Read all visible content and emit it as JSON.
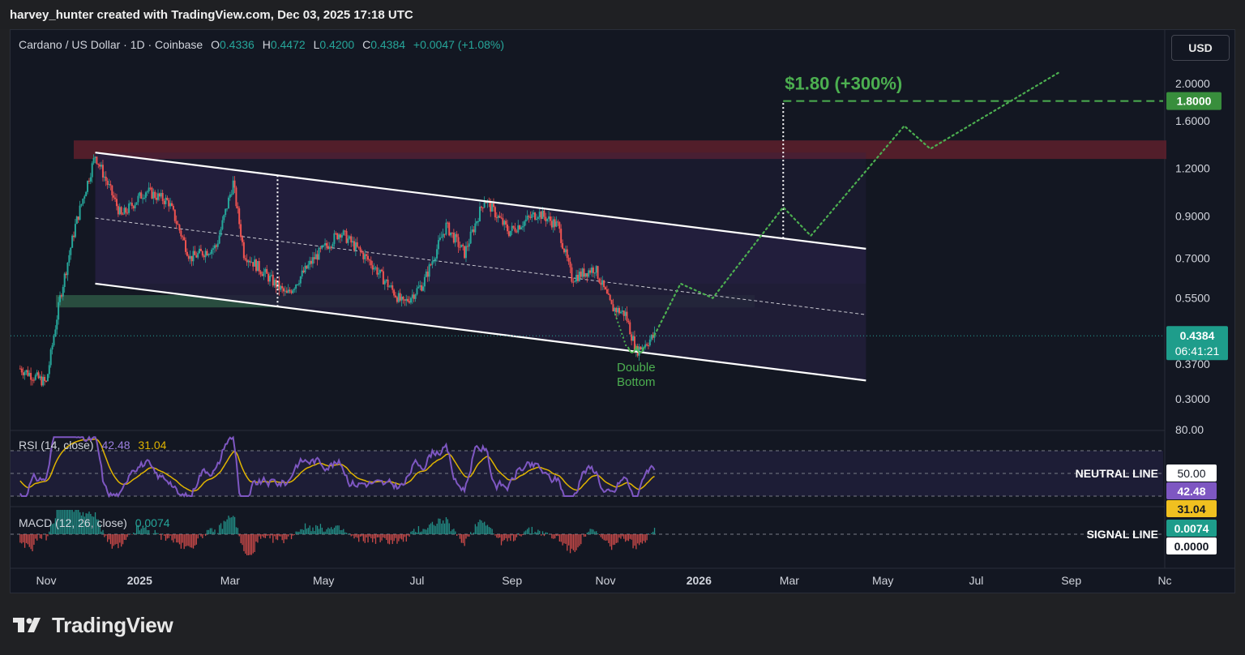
{
  "header": {
    "author_line": "harvey_hunter created with TradingView.com, Dec 03, 2025 17:18 UTC"
  },
  "legend": {
    "symbol": "Cardano / US Dollar · 1D · Coinbase",
    "open_label": "O",
    "open": "0.4336",
    "high_label": "H",
    "high": "0.4472",
    "low_label": "L",
    "low": "0.4200",
    "close_label": "C",
    "close": "0.4384",
    "change": "+0.0047 (+1.08%)"
  },
  "currency": "USD",
  "annotations": {
    "target": "$1.80 (+300%)",
    "double_bottom_line1": "Double",
    "double_bottom_line2": "Bottom",
    "neutral_line": "NEUTRAL LINE",
    "signal_line": "SIGNAL LINE"
  },
  "price_badges": {
    "target": "1.8000",
    "last_price": "0.4384",
    "countdown": "06:41:21"
  },
  "rsi": {
    "label": "RSI (14, close)",
    "value": "42.48",
    "ma_value": "31.04",
    "axis_top": "80.00",
    "badge_50": "50.00",
    "badge_rsi": "42.48",
    "badge_ma": "31.04"
  },
  "macd": {
    "label": "MACD (12, 26, close)",
    "value": "0.0074",
    "badge_value": "0.0074",
    "badge_zero": "0.0000"
  },
  "footer": {
    "brand": "TradingView"
  },
  "colors": {
    "up": "#26a69a",
    "down": "#ef5350",
    "rsi": "#7e57c2",
    "rsi_ma": "#e0b400",
    "projection": "#4caf50",
    "resistance": "#5a1f2b",
    "support": "#2e5744",
    "channel": "#221e3a"
  },
  "chart_data": {
    "type": "candlestick",
    "title": "Cardano / US Dollar · 1D · Coinbase",
    "x_ticks": [
      "Nov",
      "2025",
      "Mar",
      "May",
      "Jul",
      "Sep",
      "Nov",
      "2026",
      "Mar",
      "May",
      "Jul",
      "Sep",
      "Nc"
    ],
    "y_ticks": [
      "2.0000",
      "1.6000",
      "1.2000",
      "0.9000",
      "0.7000",
      "0.5500",
      "0.3700",
      "0.3000"
    ],
    "y_scale": "log",
    "price_series": [
      {
        "date": "2024-10-15",
        "close": 0.36
      },
      {
        "date": "2024-11-01",
        "close": 0.33
      },
      {
        "date": "2024-11-10",
        "close": 0.55
      },
      {
        "date": "2024-11-20",
        "close": 0.85
      },
      {
        "date": "2024-12-03",
        "close": 1.3
      },
      {
        "date": "2024-12-20",
        "close": 0.9
      },
      {
        "date": "2025-01-05",
        "close": 1.05
      },
      {
        "date": "2025-01-20",
        "close": 0.98
      },
      {
        "date": "2025-02-03",
        "close": 0.7
      },
      {
        "date": "2025-02-20",
        "close": 0.75
      },
      {
        "date": "2025-03-03",
        "close": 1.1
      },
      {
        "date": "2025-03-10",
        "close": 0.72
      },
      {
        "date": "2025-04-07",
        "close": 0.56
      },
      {
        "date": "2025-04-25",
        "close": 0.7
      },
      {
        "date": "2025-05-12",
        "close": 0.82
      },
      {
        "date": "2025-06-01",
        "close": 0.68
      },
      {
        "date": "2025-06-22",
        "close": 0.53
      },
      {
        "date": "2025-07-05",
        "close": 0.6
      },
      {
        "date": "2025-07-20",
        "close": 0.85
      },
      {
        "date": "2025-08-01",
        "close": 0.72
      },
      {
        "date": "2025-08-14",
        "close": 1.0
      },
      {
        "date": "2025-08-30",
        "close": 0.82
      },
      {
        "date": "2025-09-18",
        "close": 0.92
      },
      {
        "date": "2025-10-01",
        "close": 0.85
      },
      {
        "date": "2025-10-10",
        "close": 0.62
      },
      {
        "date": "2025-10-25",
        "close": 0.66
      },
      {
        "date": "2025-11-05",
        "close": 0.52
      },
      {
        "date": "2025-11-14",
        "close": 0.5
      },
      {
        "date": "2025-11-21",
        "close": 0.4
      },
      {
        "date": "2025-12-03",
        "close": 0.4384
      }
    ],
    "projection": [
      {
        "date": "2025-12-03",
        "close": 0.44
      },
      {
        "date": "2025-12-20",
        "close": 0.6
      },
      {
        "date": "2026-01-10",
        "close": 0.55
      },
      {
        "date": "2026-02-25",
        "close": 0.95
      },
      {
        "date": "2026-03-15",
        "close": 0.8
      },
      {
        "date": "2026-05-15",
        "close": 1.55
      },
      {
        "date": "2026-06-01",
        "close": 1.35
      },
      {
        "date": "2026-08-25",
        "close": 2.15
      }
    ],
    "target_price": 1.8,
    "resistance_zone": [
      1.27,
      1.42
    ],
    "support_zone": [
      0.52,
      0.56
    ],
    "channel": {
      "upper": [
        {
          "date": "2024-12-03",
          "price": 1.32
        },
        {
          "date": "2026-04-20",
          "price": 0.74
        }
      ],
      "lower": [
        {
          "date": "2024-12-03",
          "price": 0.6
        },
        {
          "date": "2026-04-20",
          "price": 0.335
        }
      ]
    },
    "rsi": {
      "value": 42.48,
      "ma": 31.04,
      "levels": [
        30,
        50,
        70
      ]
    },
    "macd": {
      "value": 0.0074,
      "signal": 0.0
    }
  }
}
